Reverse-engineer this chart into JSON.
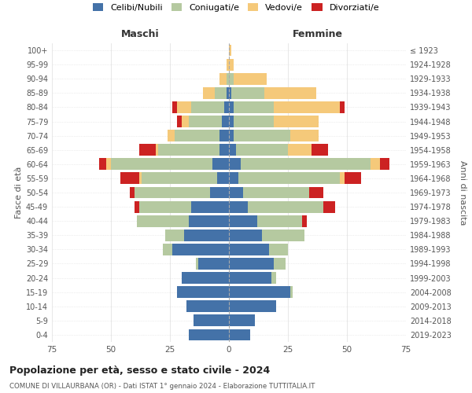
{
  "age_groups": [
    "0-4",
    "5-9",
    "10-14",
    "15-19",
    "20-24",
    "25-29",
    "30-34",
    "35-39",
    "40-44",
    "45-49",
    "50-54",
    "55-59",
    "60-64",
    "65-69",
    "70-74",
    "75-79",
    "80-84",
    "85-89",
    "90-94",
    "95-99",
    "100+"
  ],
  "birth_years": [
    "2019-2023",
    "2014-2018",
    "2009-2013",
    "2004-2008",
    "1999-2003",
    "1994-1998",
    "1989-1993",
    "1984-1988",
    "1979-1983",
    "1974-1978",
    "1969-1973",
    "1964-1968",
    "1959-1963",
    "1954-1958",
    "1949-1953",
    "1944-1948",
    "1939-1943",
    "1934-1938",
    "1929-1933",
    "1924-1928",
    "≤ 1923"
  ],
  "colors": {
    "celibi": "#4472a8",
    "coniugati": "#b5c9a0",
    "vedovi": "#f5c97a",
    "divorziati": "#cc2222"
  },
  "maschi": {
    "celibi": [
      17,
      15,
      18,
      22,
      20,
      13,
      24,
      19,
      17,
      16,
      8,
      5,
      7,
      4,
      4,
      3,
      2,
      1,
      0,
      0,
      0
    ],
    "coniugati": [
      0,
      0,
      0,
      0,
      0,
      1,
      4,
      8,
      22,
      22,
      32,
      32,
      43,
      26,
      19,
      14,
      14,
      5,
      1,
      0,
      0
    ],
    "vedovi": [
      0,
      0,
      0,
      0,
      0,
      0,
      0,
      0,
      0,
      0,
      0,
      1,
      2,
      1,
      3,
      3,
      6,
      5,
      3,
      1,
      0
    ],
    "divorziati": [
      0,
      0,
      0,
      0,
      0,
      0,
      0,
      0,
      0,
      2,
      2,
      8,
      3,
      7,
      0,
      2,
      2,
      0,
      0,
      0,
      0
    ]
  },
  "femmine": {
    "celibi": [
      9,
      11,
      20,
      26,
      18,
      19,
      17,
      14,
      12,
      8,
      6,
      4,
      5,
      3,
      2,
      2,
      2,
      1,
      0,
      0,
      0
    ],
    "coniugati": [
      0,
      0,
      0,
      1,
      2,
      5,
      8,
      18,
      19,
      32,
      28,
      43,
      55,
      22,
      24,
      17,
      17,
      14,
      2,
      0,
      0
    ],
    "vedovi": [
      0,
      0,
      0,
      0,
      0,
      0,
      0,
      0,
      0,
      0,
      0,
      2,
      4,
      10,
      12,
      19,
      28,
      22,
      14,
      2,
      1
    ],
    "divorziati": [
      0,
      0,
      0,
      0,
      0,
      0,
      0,
      0,
      2,
      5,
      6,
      7,
      4,
      7,
      0,
      0,
      2,
      0,
      0,
      0,
      0
    ]
  },
  "xlim": 75,
  "title": "Popolazione per età, sesso e stato civile - 2024",
  "subtitle": "COMUNE DI VILLAURBANA (OR) - Dati ISTAT 1° gennaio 2024 - Elaborazione TUTTITALIA.IT",
  "xlabel_left": "Maschi",
  "xlabel_right": "Femmine",
  "ylabel_left": "Fasce di età",
  "ylabel_right": "Anni di nascita",
  "legend_labels": [
    "Celibi/Nubili",
    "Coniugati/e",
    "Vedovi/e",
    "Divorziati/e"
  ],
  "bg_color": "#ffffff",
  "grid_color": "#cccccc"
}
